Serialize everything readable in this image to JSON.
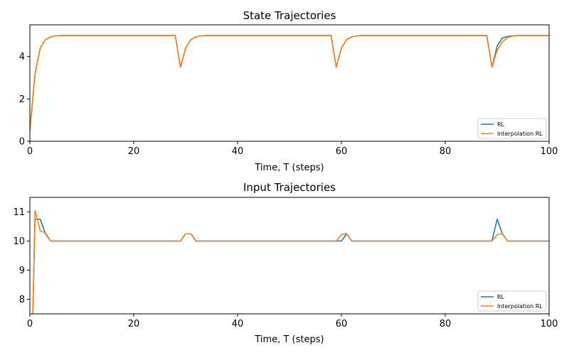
{
  "chart_data": [
    {
      "type": "line",
      "title": "State Trajectories",
      "xlabel": "Time, T (steps)",
      "ylabel": "",
      "xlim": [
        0,
        100
      ],
      "ylim": [
        0,
        5.5
      ],
      "xticks": [
        0,
        20,
        40,
        60,
        80,
        100
      ],
      "yticks": [
        0,
        2,
        4
      ],
      "legend_position": "bottom-right",
      "grid": false,
      "series": [
        {
          "name": "RL",
          "color": "#1f77b4",
          "points": [
            [
              0,
              0.5
            ],
            [
              1,
              3.2
            ],
            [
              2,
              4.4
            ],
            [
              3,
              4.8
            ],
            [
              4,
              4.93
            ],
            [
              5,
              4.98
            ],
            [
              6,
              5
            ],
            [
              28,
              5
            ],
            [
              29,
              3.5
            ],
            [
              30,
              4.4
            ],
            [
              31,
              4.8
            ],
            [
              32,
              4.93
            ],
            [
              33,
              4.98
            ],
            [
              34,
              5
            ],
            [
              58,
              5
            ],
            [
              59,
              3.5
            ],
            [
              60,
              4.4
            ],
            [
              61,
              4.8
            ],
            [
              62,
              4.93
            ],
            [
              63,
              4.98
            ],
            [
              64,
              5
            ],
            [
              88,
              5
            ],
            [
              89,
              3.5
            ],
            [
              90,
              4.5
            ],
            [
              91,
              4.88
            ],
            [
              92,
              4.95
            ],
            [
              93,
              4.98
            ],
            [
              94,
              5
            ],
            [
              100,
              5
            ]
          ]
        },
        {
          "name": "Interpolation RL",
          "color": "#ff7f0e",
          "points": [
            [
              0,
              0.5
            ],
            [
              1,
              3.2
            ],
            [
              2,
              4.4
            ],
            [
              3,
              4.8
            ],
            [
              4,
              4.93
            ],
            [
              5,
              4.98
            ],
            [
              6,
              5
            ],
            [
              28,
              5
            ],
            [
              29,
              3.5
            ],
            [
              30,
              4.4
            ],
            [
              31,
              4.8
            ],
            [
              32,
              4.93
            ],
            [
              33,
              4.98
            ],
            [
              34,
              5
            ],
            [
              58,
              5
            ],
            [
              59,
              3.5
            ],
            [
              60,
              4.4
            ],
            [
              61,
              4.8
            ],
            [
              62,
              4.93
            ],
            [
              63,
              4.98
            ],
            [
              64,
              5
            ],
            [
              88,
              5
            ],
            [
              89,
              3.5
            ],
            [
              90,
              4.3
            ],
            [
              91,
              4.7
            ],
            [
              92,
              4.9
            ],
            [
              93,
              4.97
            ],
            [
              94,
              5
            ],
            [
              100,
              5
            ]
          ]
        }
      ]
    },
    {
      "type": "line",
      "title": "Input Trajectories",
      "xlabel": "Time, T (steps)",
      "ylabel": "",
      "xlim": [
        0,
        100
      ],
      "ylim": [
        7.5,
        11.5
      ],
      "xticks": [
        0,
        20,
        40,
        60,
        80,
        100
      ],
      "yticks": [
        8,
        9,
        10,
        11
      ],
      "legend_position": "bottom-right",
      "grid": false,
      "series": [
        {
          "name": "RL",
          "color": "#1f77b4",
          "points": [
            [
              0,
              7.0
            ],
            [
              0.5,
              7.0
            ],
            [
              1,
              10.75
            ],
            [
              2,
              10.75
            ],
            [
              3,
              10.25
            ],
            [
              4,
              10
            ],
            [
              29,
              10
            ],
            [
              30,
              10.25
            ],
            [
              31,
              10.25
            ],
            [
              32,
              10
            ],
            [
              59,
              10
            ],
            [
              60,
              10
            ],
            [
              61,
              10.25
            ],
            [
              62,
              10
            ],
            [
              89,
              10
            ],
            [
              90,
              10.75
            ],
            [
              91,
              10.25
            ],
            [
              92,
              10
            ],
            [
              100,
              10
            ]
          ]
        },
        {
          "name": "Interpolation RL",
          "color": "#ff7f0e",
          "points": [
            [
              0,
              7.0
            ],
            [
              0.5,
              7.0
            ],
            [
              1,
              11.05
            ],
            [
              2,
              10.35
            ],
            [
              3,
              10.28
            ],
            [
              4,
              10
            ],
            [
              29,
              10
            ],
            [
              30,
              10.25
            ],
            [
              31,
              10.25
            ],
            [
              32,
              10
            ],
            [
              59,
              10
            ],
            [
              60,
              10.22
            ],
            [
              61,
              10.25
            ],
            [
              62,
              10
            ],
            [
              89,
              10
            ],
            [
              90,
              10.22
            ],
            [
              91,
              10.25
            ],
            [
              92,
              10
            ],
            [
              100,
              10
            ]
          ]
        }
      ]
    }
  ]
}
